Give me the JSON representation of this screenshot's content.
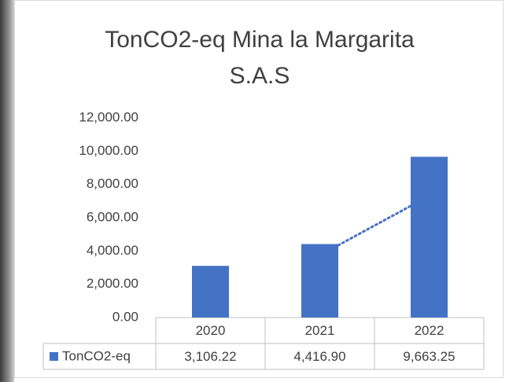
{
  "chart_data": {
    "type": "bar",
    "title": "TonCO2-eq Mina la Margarita S.A.S",
    "categories": [
      "2020",
      "2021",
      "2022"
    ],
    "series": [
      {
        "name": "TonCO2-eq",
        "color": "#4472c4",
        "values": [
          3106.22,
          4416.9,
          9663.25
        ],
        "value_labels": [
          "3,106.22",
          "4,416.90",
          "9,663.25"
        ]
      }
    ],
    "ylim": [
      0,
      12000
    ],
    "yticks": [
      {
        "value": 0,
        "label": "0.00"
      },
      {
        "value": 2000,
        "label": "2,000.00"
      },
      {
        "value": 4000,
        "label": "4,000.00"
      },
      {
        "value": 6000,
        "label": "6,000.00"
      },
      {
        "value": 8000,
        "label": "8,000.00"
      },
      {
        "value": 10000,
        "label": "10,000.00"
      },
      {
        "value": 12000,
        "label": "12,000.00"
      }
    ],
    "grid": false,
    "data_table": true
  }
}
